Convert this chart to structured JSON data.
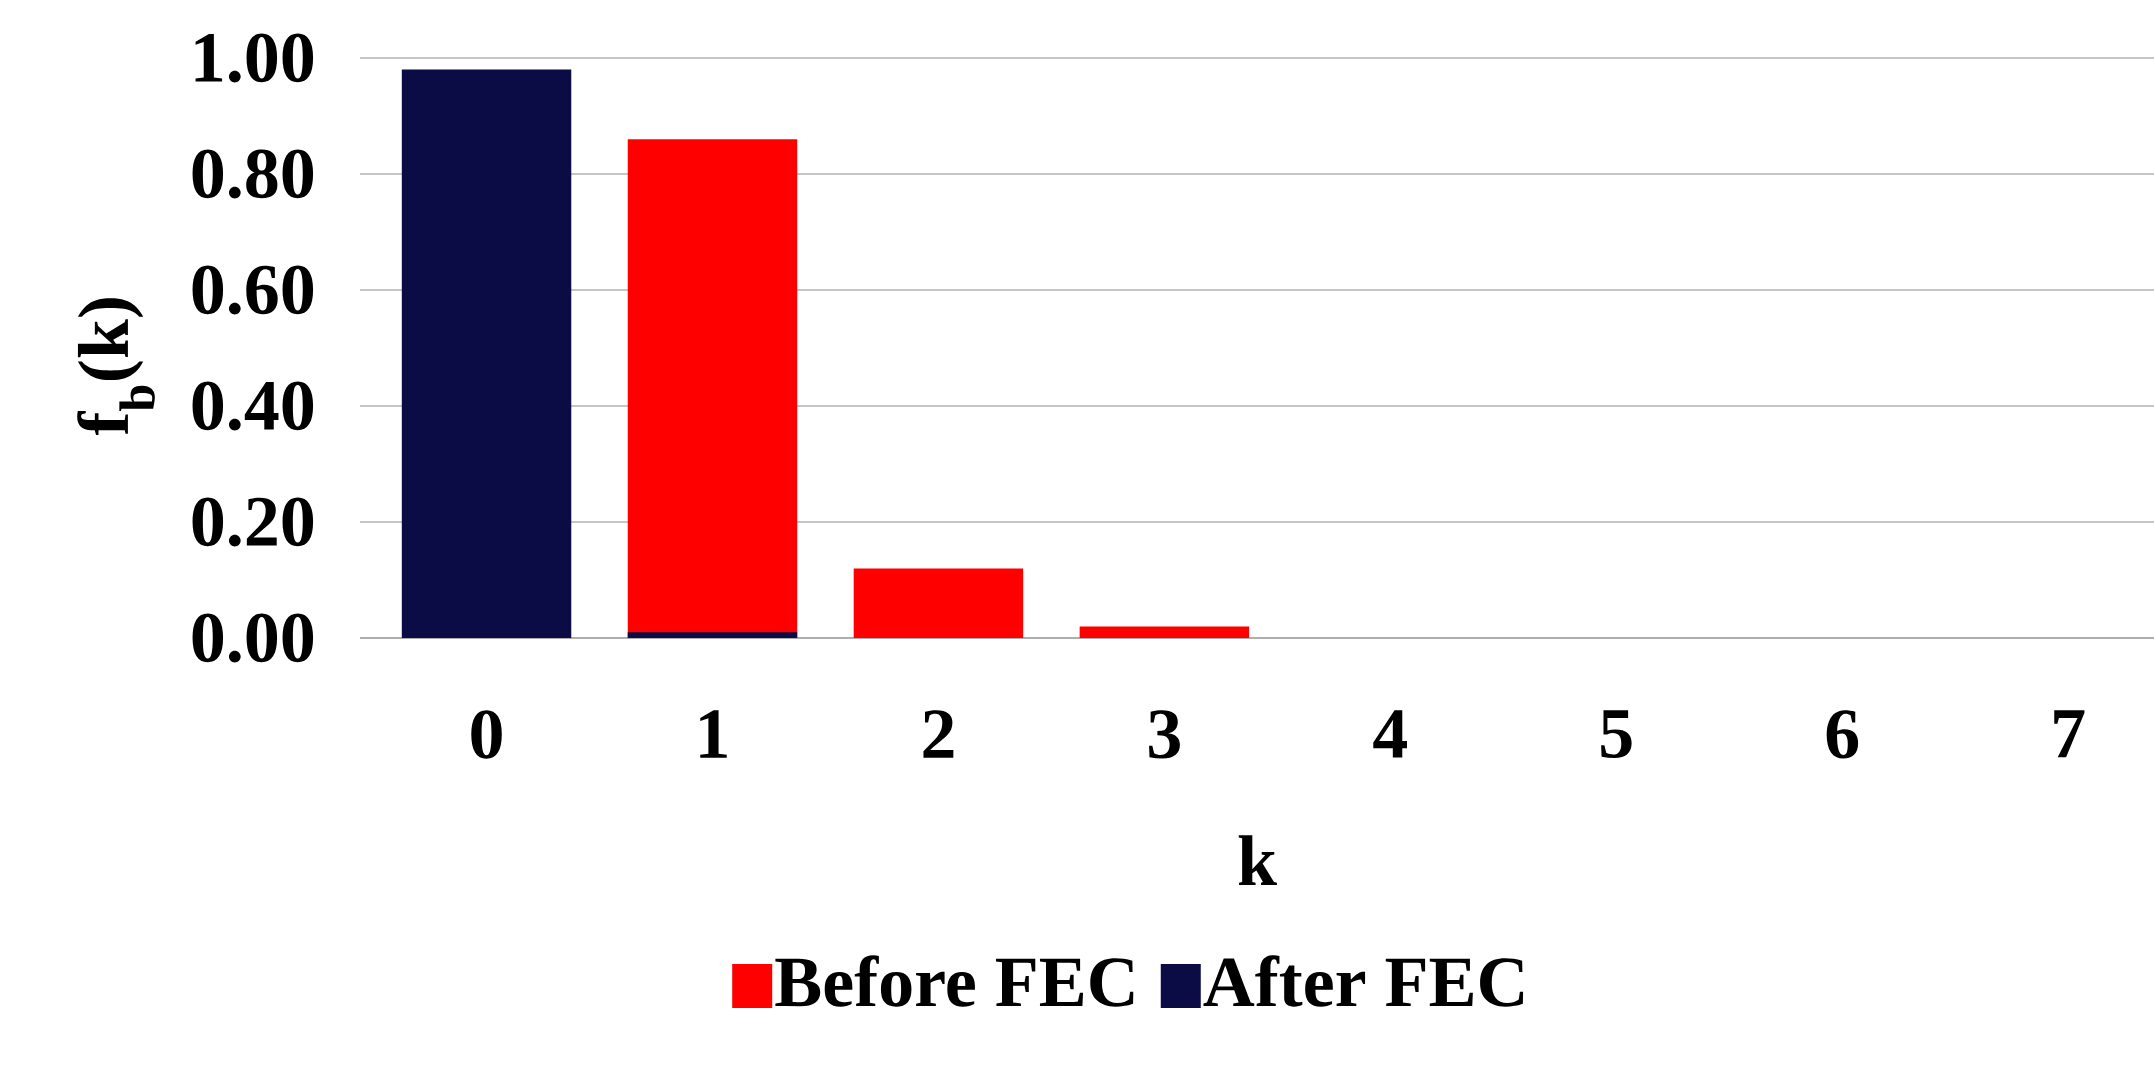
{
  "chart_data": {
    "type": "bar",
    "xlabel": "k",
    "ylabel": "f$_{b}$(k)",
    "categories": [
      "0",
      "1",
      "2",
      "3",
      "4",
      "5",
      "6",
      "7"
    ],
    "series": [
      {
        "name": "Before FEC",
        "color": "#ff0000",
        "values": [
          null,
          0.86,
          0.12,
          0.02,
          0,
          0,
          0,
          0
        ]
      },
      {
        "name": "After FEC",
        "color": "#0b0b45",
        "values": [
          0.98,
          0.01,
          0,
          0,
          0,
          0,
          0,
          0
        ]
      }
    ],
    "ylim": [
      0,
      1.0
    ],
    "yticks": [
      {
        "value": 0,
        "label": "0.00"
      },
      {
        "value": 0.2,
        "label": "0.20"
      },
      {
        "value": 0.4,
        "label": "0.40"
      },
      {
        "value": 0.6,
        "label": "0.60"
      },
      {
        "value": 0.8,
        "label": "0.80"
      },
      {
        "value": 1.0,
        "label": "1.00"
      }
    ],
    "grid": "y",
    "legend": "bottom"
  }
}
